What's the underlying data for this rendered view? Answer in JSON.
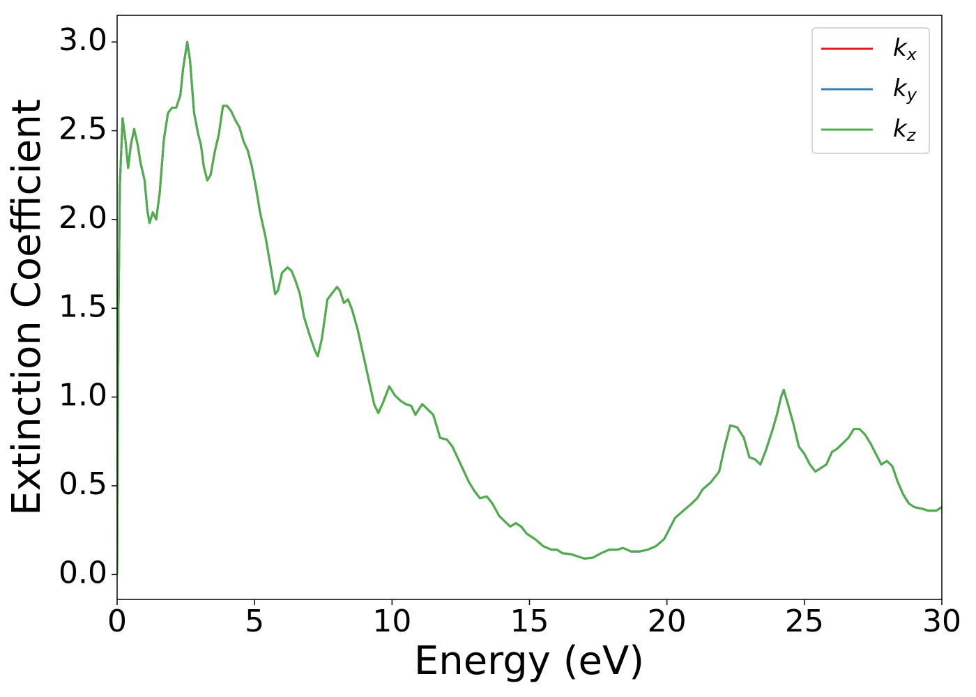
{
  "chart_data": {
    "type": "line",
    "xlabel": "Energy (eV)",
    "ylabel": "Extinction Coefficient",
    "x": [
      0,
      0.05,
      0.1,
      0.2,
      0.3,
      0.4,
      0.5,
      0.62,
      0.75,
      0.85,
      1.0,
      1.1,
      1.18,
      1.3,
      1.42,
      1.55,
      1.7,
      1.85,
      2.0,
      2.15,
      2.3,
      2.4,
      2.55,
      2.65,
      2.8,
      2.95,
      3.05,
      3.15,
      3.28,
      3.4,
      3.55,
      3.7,
      3.85,
      4.0,
      4.15,
      4.3,
      4.45,
      4.6,
      4.75,
      4.9,
      5.05,
      5.2,
      5.4,
      5.6,
      5.75,
      5.85,
      6.0,
      6.2,
      6.35,
      6.5,
      6.65,
      6.8,
      7.0,
      7.2,
      7.3,
      7.45,
      7.65,
      7.85,
      8.0,
      8.1,
      8.25,
      8.4,
      8.55,
      8.75,
      8.95,
      9.15,
      9.35,
      9.5,
      9.65,
      9.9,
      10.1,
      10.3,
      10.5,
      10.7,
      10.85,
      11.1,
      11.3,
      11.5,
      11.75,
      12.0,
      12.2,
      12.5,
      12.8,
      13.0,
      13.2,
      13.45,
      13.65,
      13.9,
      14.1,
      14.3,
      14.5,
      14.7,
      14.9,
      15.2,
      15.5,
      15.8,
      16.0,
      16.2,
      16.5,
      16.8,
      17.0,
      17.3,
      17.6,
      17.9,
      18.2,
      18.4,
      18.7,
      19.0,
      19.3,
      19.6,
      19.9,
      20.1,
      20.3,
      20.6,
      20.9,
      21.1,
      21.3,
      21.6,
      21.9,
      22.1,
      22.3,
      22.55,
      22.8,
      23.0,
      23.2,
      23.4,
      23.6,
      23.85,
      24.0,
      24.15,
      24.25,
      24.4,
      24.6,
      24.8,
      25.0,
      25.2,
      25.4,
      25.6,
      25.8,
      26.0,
      26.2,
      26.4,
      26.6,
      26.8,
      27.0,
      27.2,
      27.4,
      27.6,
      27.8,
      28.0,
      28.2,
      28.4,
      28.6,
      28.8,
      29.0,
      29.3,
      29.5,
      29.8,
      30.0
    ],
    "series": [
      {
        "name": "kx",
        "color": "#e41a1c",
        "values": [
          0.0,
          1.5,
          2.2,
          2.57,
          2.45,
          2.29,
          2.42,
          2.51,
          2.42,
          2.32,
          2.22,
          2.05,
          1.98,
          2.04,
          2.0,
          2.15,
          2.45,
          2.6,
          2.63,
          2.63,
          2.7,
          2.85,
          3.0,
          2.9,
          2.6,
          2.48,
          2.42,
          2.3,
          2.22,
          2.25,
          2.38,
          2.48,
          2.64,
          2.64,
          2.61,
          2.56,
          2.52,
          2.44,
          2.39,
          2.3,
          2.18,
          2.04,
          1.9,
          1.72,
          1.58,
          1.6,
          1.7,
          1.73,
          1.71,
          1.65,
          1.58,
          1.45,
          1.35,
          1.26,
          1.23,
          1.33,
          1.55,
          1.59,
          1.62,
          1.6,
          1.53,
          1.55,
          1.49,
          1.38,
          1.24,
          1.1,
          0.96,
          0.91,
          0.96,
          1.06,
          1.01,
          0.98,
          0.96,
          0.95,
          0.9,
          0.96,
          0.93,
          0.9,
          0.77,
          0.76,
          0.72,
          0.62,
          0.52,
          0.47,
          0.43,
          0.44,
          0.4,
          0.33,
          0.3,
          0.27,
          0.29,
          0.27,
          0.23,
          0.2,
          0.16,
          0.14,
          0.14,
          0.12,
          0.115,
          0.1,
          0.09,
          0.095,
          0.12,
          0.14,
          0.14,
          0.15,
          0.13,
          0.13,
          0.14,
          0.16,
          0.2,
          0.26,
          0.32,
          0.36,
          0.4,
          0.43,
          0.48,
          0.52,
          0.58,
          0.72,
          0.84,
          0.83,
          0.77,
          0.66,
          0.65,
          0.62,
          0.7,
          0.82,
          0.9,
          1.0,
          1.04,
          0.96,
          0.85,
          0.72,
          0.68,
          0.62,
          0.58,
          0.6,
          0.62,
          0.69,
          0.71,
          0.74,
          0.77,
          0.82,
          0.82,
          0.79,
          0.74,
          0.68,
          0.62,
          0.64,
          0.61,
          0.52,
          0.45,
          0.4,
          0.38,
          0.37,
          0.36,
          0.36,
          0.38
        ]
      },
      {
        "name": "ky",
        "color": "#377eb8",
        "values": [
          0.0,
          1.5,
          2.2,
          2.57,
          2.45,
          2.29,
          2.42,
          2.51,
          2.42,
          2.32,
          2.22,
          2.05,
          1.98,
          2.04,
          2.0,
          2.15,
          2.45,
          2.6,
          2.63,
          2.63,
          2.7,
          2.85,
          3.0,
          2.9,
          2.6,
          2.48,
          2.42,
          2.3,
          2.22,
          2.25,
          2.38,
          2.48,
          2.64,
          2.64,
          2.61,
          2.56,
          2.52,
          2.44,
          2.39,
          2.3,
          2.18,
          2.04,
          1.9,
          1.72,
          1.58,
          1.6,
          1.7,
          1.73,
          1.71,
          1.65,
          1.58,
          1.45,
          1.35,
          1.26,
          1.23,
          1.33,
          1.55,
          1.59,
          1.62,
          1.6,
          1.53,
          1.55,
          1.49,
          1.38,
          1.24,
          1.1,
          0.96,
          0.91,
          0.96,
          1.06,
          1.01,
          0.98,
          0.96,
          0.95,
          0.9,
          0.96,
          0.93,
          0.9,
          0.77,
          0.76,
          0.72,
          0.62,
          0.52,
          0.47,
          0.43,
          0.44,
          0.4,
          0.33,
          0.3,
          0.27,
          0.29,
          0.27,
          0.23,
          0.2,
          0.16,
          0.14,
          0.14,
          0.12,
          0.115,
          0.1,
          0.09,
          0.095,
          0.12,
          0.14,
          0.14,
          0.15,
          0.13,
          0.13,
          0.14,
          0.16,
          0.2,
          0.26,
          0.32,
          0.36,
          0.4,
          0.43,
          0.48,
          0.52,
          0.58,
          0.72,
          0.84,
          0.83,
          0.77,
          0.66,
          0.65,
          0.62,
          0.7,
          0.82,
          0.9,
          1.0,
          1.04,
          0.96,
          0.85,
          0.72,
          0.68,
          0.62,
          0.58,
          0.6,
          0.62,
          0.69,
          0.71,
          0.74,
          0.77,
          0.82,
          0.82,
          0.79,
          0.74,
          0.68,
          0.62,
          0.64,
          0.61,
          0.52,
          0.45,
          0.4,
          0.38,
          0.37,
          0.36,
          0.36,
          0.38
        ]
      },
      {
        "name": "kz",
        "color": "#4daf4a",
        "values": [
          0.0,
          1.5,
          2.2,
          2.57,
          2.45,
          2.29,
          2.42,
          2.51,
          2.42,
          2.32,
          2.22,
          2.05,
          1.98,
          2.04,
          2.0,
          2.15,
          2.45,
          2.6,
          2.63,
          2.63,
          2.7,
          2.85,
          3.0,
          2.9,
          2.6,
          2.48,
          2.42,
          2.3,
          2.22,
          2.25,
          2.38,
          2.48,
          2.64,
          2.64,
          2.61,
          2.56,
          2.52,
          2.44,
          2.39,
          2.3,
          2.18,
          2.04,
          1.9,
          1.72,
          1.58,
          1.6,
          1.7,
          1.73,
          1.71,
          1.65,
          1.58,
          1.45,
          1.35,
          1.26,
          1.23,
          1.33,
          1.55,
          1.59,
          1.62,
          1.6,
          1.53,
          1.55,
          1.49,
          1.38,
          1.24,
          1.1,
          0.96,
          0.91,
          0.96,
          1.06,
          1.01,
          0.98,
          0.96,
          0.95,
          0.9,
          0.96,
          0.93,
          0.9,
          0.77,
          0.76,
          0.72,
          0.62,
          0.52,
          0.47,
          0.43,
          0.44,
          0.4,
          0.33,
          0.3,
          0.27,
          0.29,
          0.27,
          0.23,
          0.2,
          0.16,
          0.14,
          0.14,
          0.12,
          0.115,
          0.1,
          0.09,
          0.095,
          0.12,
          0.14,
          0.14,
          0.15,
          0.13,
          0.13,
          0.14,
          0.16,
          0.2,
          0.26,
          0.32,
          0.36,
          0.4,
          0.43,
          0.48,
          0.52,
          0.58,
          0.72,
          0.84,
          0.83,
          0.77,
          0.66,
          0.65,
          0.62,
          0.7,
          0.82,
          0.9,
          1.0,
          1.04,
          0.96,
          0.85,
          0.72,
          0.68,
          0.62,
          0.58,
          0.6,
          0.62,
          0.69,
          0.71,
          0.74,
          0.77,
          0.82,
          0.82,
          0.79,
          0.74,
          0.68,
          0.62,
          0.64,
          0.61,
          0.52,
          0.45,
          0.4,
          0.38,
          0.37,
          0.36,
          0.36,
          0.38
        ]
      }
    ],
    "xlim": [
      0,
      30
    ],
    "xticks": [
      0,
      5,
      10,
      15,
      20,
      25,
      30
    ],
    "ylim": [
      -0.14,
      3.15
    ],
    "yticks": [
      {
        "value": 0,
        "label": "0.0"
      },
      0.5,
      {
        "value": 1,
        "label": "1.0"
      },
      1.5,
      {
        "value": 2,
        "label": "2.0"
      },
      2.5,
      {
        "value": 3,
        "label": "3.0"
      }
    ],
    "grid": false,
    "legend": "upper right"
  }
}
